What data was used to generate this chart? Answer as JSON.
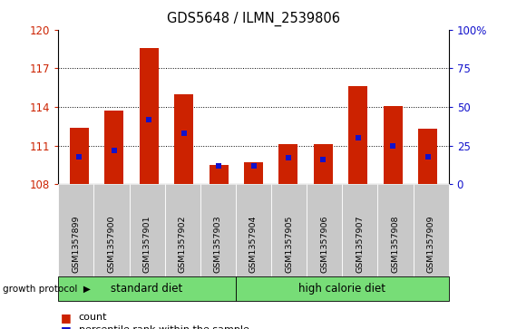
{
  "title": "GDS5648 / ILMN_2539806",
  "samples": [
    "GSM1357899",
    "GSM1357900",
    "GSM1357901",
    "GSM1357902",
    "GSM1357903",
    "GSM1357904",
    "GSM1357905",
    "GSM1357906",
    "GSM1357907",
    "GSM1357908",
    "GSM1357909"
  ],
  "count_values": [
    112.4,
    113.7,
    118.6,
    115.0,
    109.5,
    109.7,
    111.1,
    111.1,
    115.6,
    114.1,
    112.3
  ],
  "percentile_values": [
    18,
    22,
    42,
    33,
    12,
    12,
    17,
    16,
    30,
    25,
    18
  ],
  "bar_base": 108,
  "ylim_left": [
    108,
    120
  ],
  "ylim_right": [
    0,
    100
  ],
  "yticks_left": [
    108,
    111,
    114,
    117,
    120
  ],
  "yticks_right": [
    0,
    25,
    50,
    75,
    100
  ],
  "bar_color": "#cc2200",
  "percentile_color": "#1111cc",
  "groups": [
    {
      "label": "standard diet",
      "start": 0,
      "end": 4
    },
    {
      "label": "high calorie diet",
      "start": 5,
      "end": 10
    }
  ],
  "group_protocol_label": "growth protocol",
  "group_bg_color": "#77dd77",
  "tick_bg_color": "#c8c8c8",
  "bar_width": 0.55,
  "std_diet_divider": 4.5,
  "percentile_marker_size": 4
}
